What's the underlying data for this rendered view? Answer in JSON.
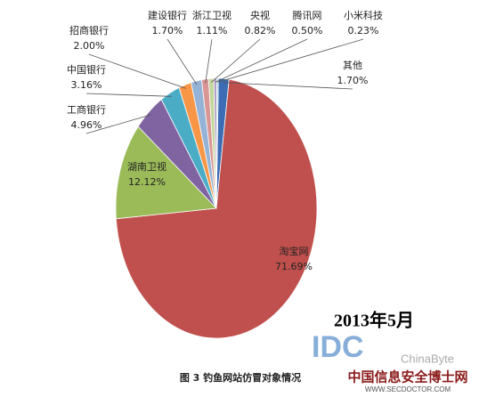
{
  "chart_data": {
    "type": "pie",
    "categories": [
      "其他",
      "淘宝网",
      "湖南卫视",
      "工商银行",
      "中国银行",
      "招商银行",
      "建设银行",
      "浙江卫视",
      "央视",
      "腾讯网",
      "小米科技"
    ],
    "values": [
      1.7,
      71.69,
      12.12,
      4.96,
      3.16,
      2.0,
      1.7,
      1.11,
      0.82,
      0.5,
      0.23
    ],
    "value_labels": [
      "1.70%",
      "71.69%",
      "12.12%",
      "4.96%",
      "3.16%",
      "2.00%",
      "1.70%",
      "1.11%",
      "0.82%",
      "0.50%",
      "0.23%"
    ],
    "colors": [
      "#3c6db4",
      "#c0504d",
      "#9bbb59",
      "#8064a2",
      "#4bacc6",
      "#f79646",
      "#95b3d7",
      "#d99694",
      "#c3d69b",
      "#b3a2c7",
      "#93cddd"
    ],
    "annotation": "2013年5月",
    "caption": "图 3 钓鱼网站仿冒对象情况",
    "watermarks": [
      "IDC",
      "ChinaByte",
      "中国信息安全博士网",
      "WWW.SECDOCTOR.COM"
    ]
  }
}
